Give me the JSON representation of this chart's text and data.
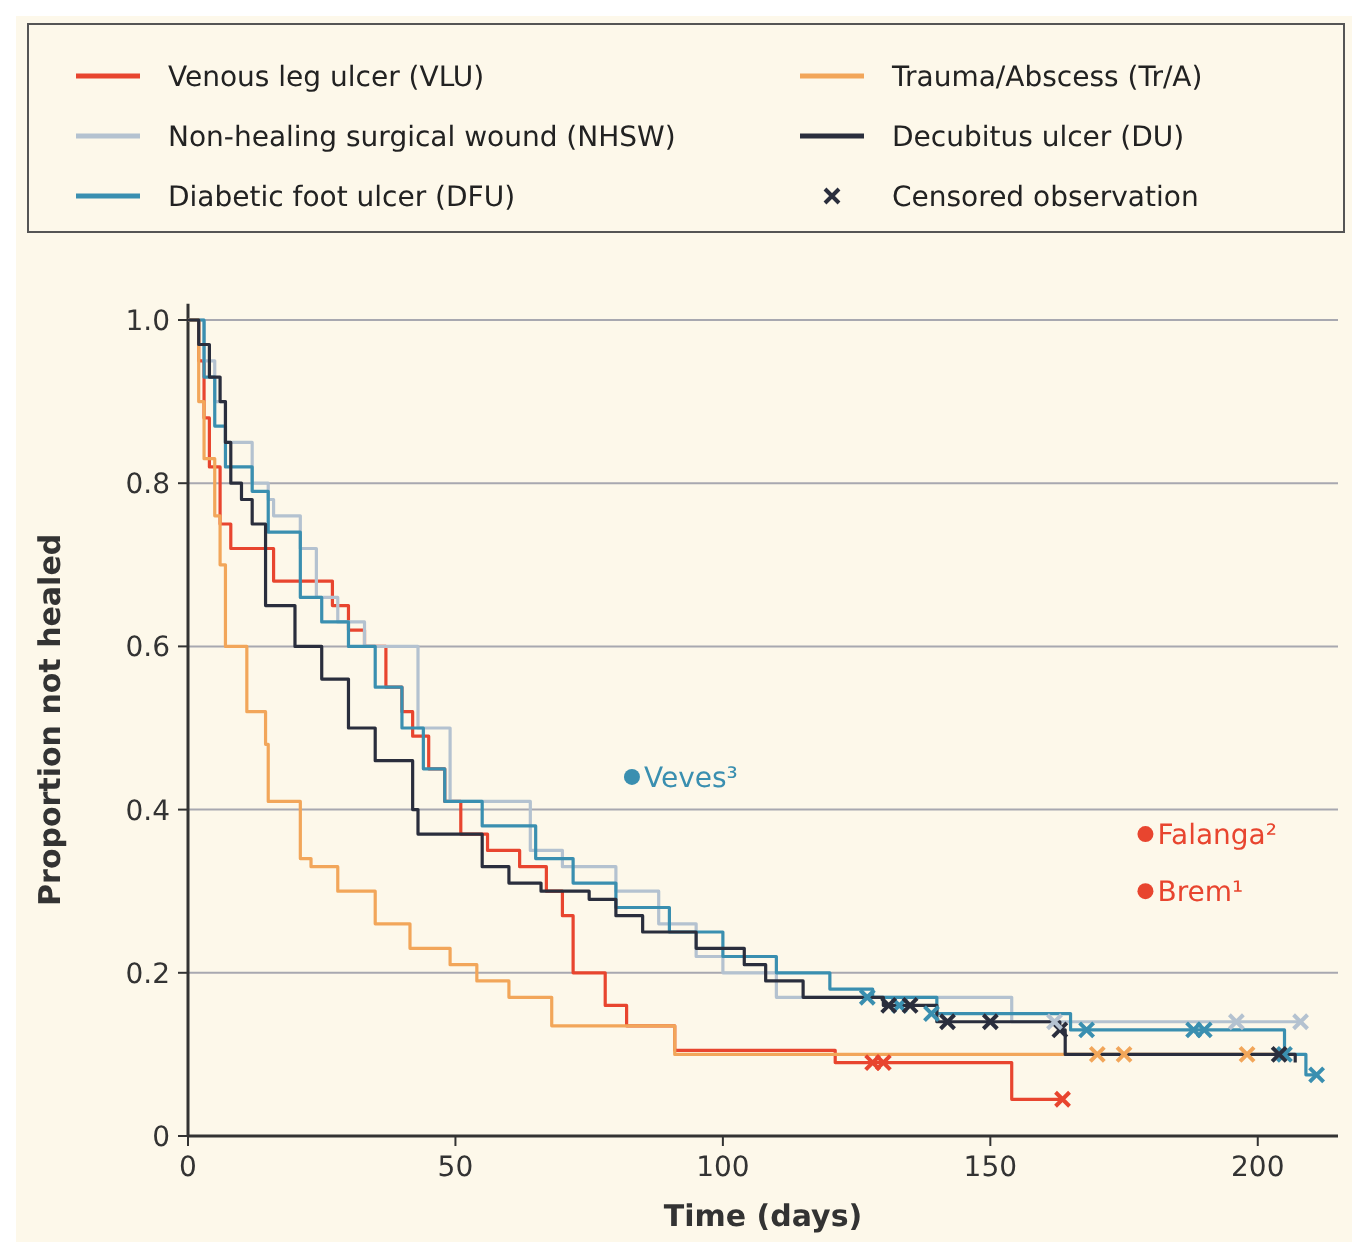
{
  "chart_data": {
    "type": "step",
    "xlabel": "Time (days)",
    "ylabel": "Proportion not healed",
    "xlim": [
      0,
      215
    ],
    "ylim": [
      0,
      1.02
    ],
    "xticks": [
      0,
      50,
      100,
      150,
      200
    ],
    "yticks": [
      0,
      0.2,
      0.4,
      0.6,
      0.8,
      {
        "value": 1,
        "label": "1.0"
      }
    ],
    "grid": "y",
    "legend": "top",
    "series": [
      {
        "name": "Venous leg ulcer (VLU)",
        "color": "#e8452f",
        "x": [
          0,
          2,
          3,
          4,
          6,
          8,
          15,
          16,
          25,
          27,
          30,
          33,
          37,
          40,
          42,
          45,
          48,
          51,
          56,
          62,
          67,
          70,
          72,
          78,
          82,
          91,
          121,
          154,
          163.5
        ],
        "values": [
          1,
          0.95,
          0.88,
          0.82,
          0.75,
          0.72,
          0.72,
          0.68,
          0.68,
          0.65,
          0.62,
          0.6,
          0.55,
          0.52,
          0.49,
          0.45,
          0.41,
          0.37,
          0.35,
          0.33,
          0.3,
          0.27,
          0.2,
          0.16,
          0.135,
          0.105,
          0.09,
          0.045,
          0.045
        ]
      },
      {
        "name": "Non-healing surgical wound (NHSW)",
        "color": "#b4c2d0",
        "x": [
          0,
          3,
          5,
          7,
          12,
          15,
          16,
          21,
          24,
          28,
          33,
          42,
          43,
          49,
          63,
          64,
          68,
          70,
          80,
          88,
          95,
          100,
          110,
          154,
          208
        ],
        "values": [
          1,
          0.95,
          0.9,
          0.85,
          0.8,
          0.78,
          0.76,
          0.72,
          0.66,
          0.63,
          0.6,
          0.6,
          0.5,
          0.41,
          0.41,
          0.35,
          0.35,
          0.33,
          0.3,
          0.26,
          0.22,
          0.2,
          0.17,
          0.14,
          0.14
        ]
      },
      {
        "name": "Diabetic foot ulcer (DFU)",
        "color": "#3a8fb0",
        "x": [
          0,
          3,
          5,
          7,
          12,
          15,
          21,
          25,
          30,
          35,
          40,
          44,
          48,
          55,
          65,
          72,
          80,
          90,
          100,
          110,
          120,
          128,
          140,
          165,
          200,
          205,
          209,
          211
        ],
        "values": [
          1,
          0.93,
          0.87,
          0.82,
          0.79,
          0.74,
          0.66,
          0.63,
          0.6,
          0.55,
          0.5,
          0.45,
          0.41,
          0.38,
          0.34,
          0.31,
          0.28,
          0.25,
          0.22,
          0.2,
          0.18,
          0.17,
          0.15,
          0.13,
          0.13,
          0.1,
          0.075,
          0.075
        ]
      },
      {
        "name": "Trauma/Abscess (Tr/A)",
        "color": "#f2a65a",
        "x": [
          0,
          2,
          3,
          5,
          6,
          7,
          11,
          14.5,
          15,
          21,
          23,
          28,
          35,
          41.5,
          49,
          54,
          60,
          68,
          91,
          205
        ],
        "values": [
          1,
          0.9,
          0.83,
          0.76,
          0.7,
          0.6,
          0.52,
          0.48,
          0.41,
          0.34,
          0.33,
          0.3,
          0.26,
          0.23,
          0.21,
          0.19,
          0.17,
          0.135,
          0.1,
          0.1
        ]
      },
      {
        "name": "Decubitus ulcer (DU)",
        "color": "#2a2e3d",
        "x": [
          0,
          2,
          4,
          6,
          7,
          8,
          10,
          12,
          14,
          14.5,
          20,
          25,
          30,
          35,
          42,
          43,
          50,
          55,
          60,
          66,
          75,
          80,
          85,
          95,
          104,
          108,
          115,
          130,
          140,
          163,
          164,
          205,
          207
        ],
        "values": [
          1,
          0.97,
          0.93,
          0.9,
          0.85,
          0.8,
          0.78,
          0.75,
          0.75,
          0.65,
          0.6,
          0.56,
          0.5,
          0.46,
          0.4,
          0.37,
          0.37,
          0.33,
          0.31,
          0.3,
          0.29,
          0.27,
          0.25,
          0.23,
          0.21,
          0.19,
          0.17,
          0.16,
          0.14,
          0.13,
          0.1,
          0.1,
          0.09
        ]
      },
      {
        "name": "Censored observation",
        "type": "scatter",
        "marker": "cross",
        "color": "#2a2e3d",
        "x": [
          128,
          130,
          163.5,
          127,
          133,
          139,
          168,
          188,
          190,
          205,
          211,
          131,
          135,
          142,
          150,
          163,
          204,
          162,
          196,
          208,
          170,
          175,
          198
        ],
        "values": [
          0.09,
          0.09,
          0.045,
          0.17,
          0.16,
          0.15,
          0.13,
          0.13,
          0.13,
          0.1,
          0.075,
          0.16,
          0.16,
          0.14,
          0.14,
          0.13,
          0.1,
          0.14,
          0.14,
          0.14,
          0.1,
          0.1,
          0.1
        ],
        "colors": [
          "#e8452f",
          "#e8452f",
          "#e8452f",
          "#3a8fb0",
          "#3a8fb0",
          "#3a8fb0",
          "#3a8fb0",
          "#3a8fb0",
          "#3a8fb0",
          "#3a8fb0",
          "#3a8fb0",
          "#2a2e3d",
          "#2a2e3d",
          "#2a2e3d",
          "#2a2e3d",
          "#2a2e3d",
          "#2a2e3d",
          "#b4c2d0",
          "#b4c2d0",
          "#b4c2d0",
          "#f2a65a",
          "#f2a65a",
          "#f2a65a"
        ]
      },
      {
        "name": "Veves³",
        "type": "scatter",
        "marker": "circle",
        "color": "#3a8fb0",
        "x": [
          83
        ],
        "values": [
          0.44
        ]
      },
      {
        "name": "Falanga²",
        "type": "scatter",
        "marker": "circle",
        "color": "#e8452f",
        "x": [
          179
        ],
        "values": [
          0.37
        ]
      },
      {
        "name": "Brem¹",
        "type": "scatter",
        "marker": "circle",
        "color": "#e8452f",
        "x": [
          179
        ],
        "values": [
          0.3
        ]
      }
    ]
  }
}
